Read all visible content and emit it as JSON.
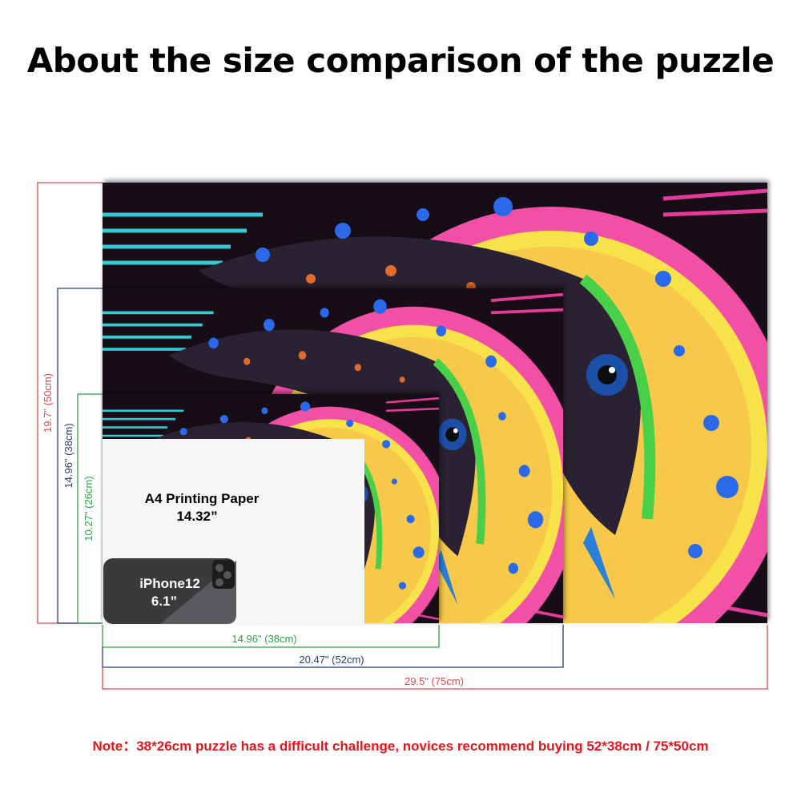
{
  "title": "About the size comparison of the puzzle",
  "heights": [
    "19.7\" (50cm)",
    "14.96\" (38cm)",
    "10.27\" (26cm)"
  ],
  "widths": [
    "14.96\" (38cm)",
    "20.47\" (52cm)",
    "29.5\" (75cm)"
  ],
  "paper": {
    "label": "A4 Printing Paper",
    "size": "14.32”"
  },
  "phone": {
    "label": "iPhone12",
    "size": "6.1”"
  },
  "note": "Note：38*26cm puzzle has a difficult challenge, novices recommend buying 52*38cm / 75*50cm"
}
